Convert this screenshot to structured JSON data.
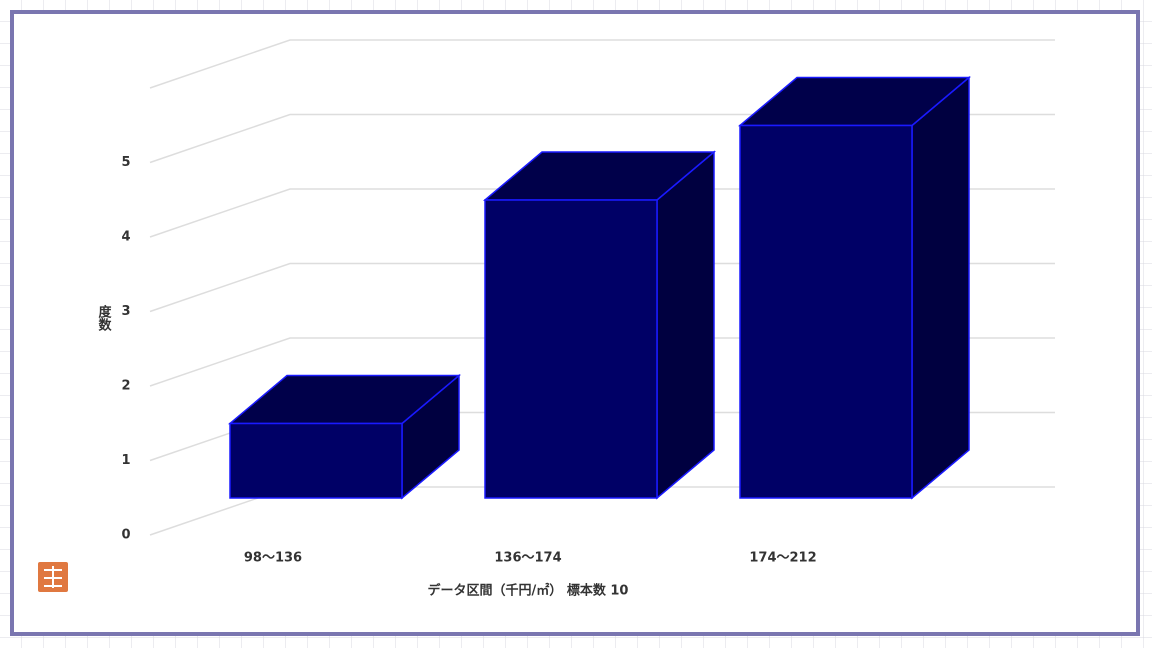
{
  "chart_data": {
    "type": "bar3d",
    "y_label": "度数",
    "x_label": "データ区間（千円/㎡） 標本数 10",
    "categories": [
      "98～136",
      "136～174",
      "174～212"
    ],
    "values": [
      1,
      4,
      5
    ],
    "color": "#000066",
    "ylim": [
      0,
      6
    ],
    "yticks": [
      0,
      1,
      2,
      3,
      4,
      5
    ],
    "grid": true
  }
}
